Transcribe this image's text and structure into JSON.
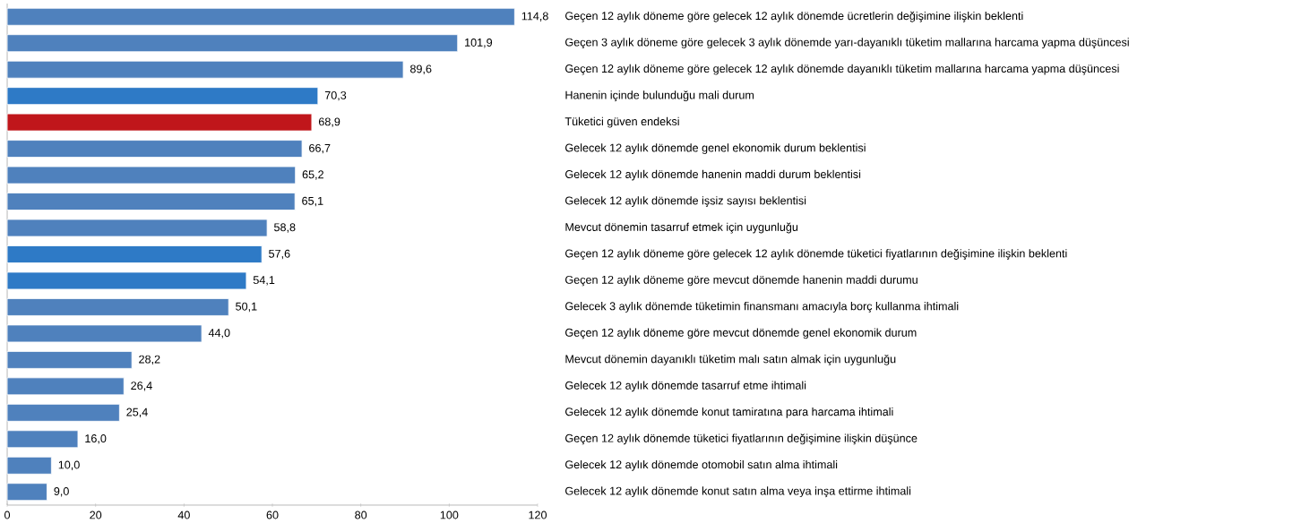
{
  "chart_data": {
    "type": "bar",
    "orientation": "horizontal",
    "categories": [
      "Geçen 12 aylık döneme göre gelecek 12 aylık dönemde ücretlerin değişimine ilişkin beklenti",
      "Geçen 3 aylık döneme göre gelecek 3 aylık dönemde yarı-dayanıklı tüketim mallarına harcama yapma düşüncesi",
      "Geçen 12 aylık döneme göre gelecek 12 aylık dönemde  dayanıklı tüketim mallarına harcama yapma düşüncesi",
      "Hanenin içinde bulunduğu mali durum",
      "Tüketici güven endeksi",
      "Gelecek 12 aylık dönemde genel ekonomik durum beklentisi",
      "Gelecek 12 aylık dönemde hanenin maddi durum beklentisi",
      "Gelecek 12 aylık dönemde işsiz sayısı beklentisi",
      "Mevcut dönemin tasarruf etmek için uygunluğu",
      "Geçen 12 aylık döneme göre gelecek 12 aylık dönemde tüketici fiyatlarının değişimine ilişkin beklenti",
      "Geçen 12 aylık döneme göre mevcut dönemde hanenin maddi durumu",
      "Gelecek 3 aylık dönemde tüketimin finansmanı amacıyla borç kullanma ihtimali",
      "Geçen 12 aylık döneme göre mevcut dönemde genel ekonomik durum",
      "Mevcut dönemin dayanıklı tüketim malı satın almak için uygunluğu",
      "Gelecek 12 aylık dönemde tasarruf etme ihtimali",
      "Gelecek 12 aylık dönemde konut tamiratına para harcama ihtimali",
      "Geçen 12 aylık dönemde tüketici fiyatlarının değişimine ilişkin düşünce",
      "Gelecek 12 aylık dönemde otomobil satın alma ihtimali",
      "Gelecek 12 aylık dönemde konut satın alma veya inşa ettirme ihtimali"
    ],
    "values": [
      114.8,
      101.9,
      89.6,
      70.3,
      68.9,
      66.7,
      65.2,
      65.1,
      58.8,
      57.6,
      54.1,
      50.1,
      44.0,
      28.2,
      26.4,
      25.4,
      16.0,
      10.0,
      9.0
    ],
    "value_labels": [
      "114,8",
      "101,9",
      "89,6",
      "70,3",
      "68,9",
      "66,7",
      "65,2",
      "65,1",
      "58,8",
      "57,6",
      "54,1",
      "50,1",
      "44,0",
      "28,2",
      "26,4",
      "25,4",
      "16,0",
      "10,0",
      "9,0"
    ],
    "colors": [
      "#4f81bd",
      "#4f81bd",
      "#4f81bd",
      "#2e7ac6",
      "#c0161b",
      "#4f81bd",
      "#4f81bd",
      "#4f81bd",
      "#4f81bd",
      "#2e7ac6",
      "#2e7ac6",
      "#4f81bd",
      "#4f81bd",
      "#4f81bd",
      "#4f81bd",
      "#4f81bd",
      "#4f81bd",
      "#4f81bd",
      "#4f81bd"
    ],
    "xlim": [
      0,
      120
    ],
    "xticks": [
      0,
      20,
      40,
      60,
      80,
      100,
      120
    ],
    "grid": false
  }
}
